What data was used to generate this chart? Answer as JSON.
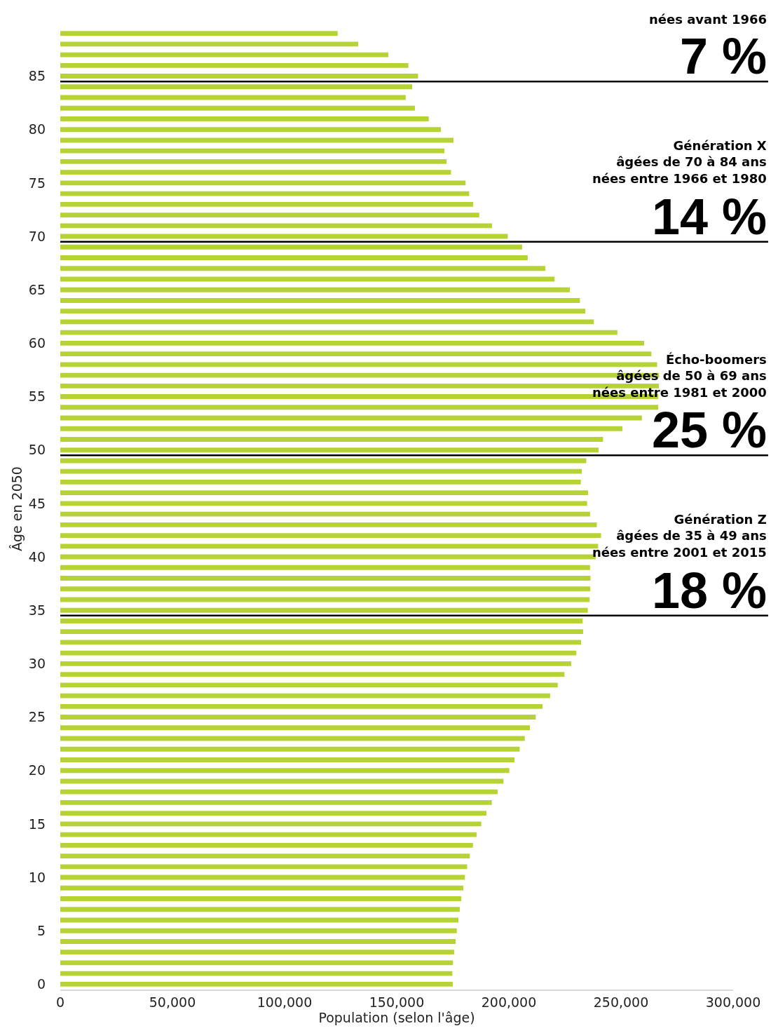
{
  "chart_data": {
    "type": "bar",
    "orientation": "horizontal",
    "x": [
      0,
      1,
      2,
      3,
      4,
      5,
      6,
      7,
      8,
      9,
      10,
      11,
      12,
      13,
      14,
      15,
      16,
      17,
      18,
      19,
      20,
      21,
      22,
      23,
      24,
      25,
      26,
      27,
      28,
      29,
      30,
      31,
      32,
      33,
      34,
      35,
      36,
      37,
      38,
      39,
      40,
      41,
      42,
      43,
      44,
      45,
      46,
      47,
      48,
      49,
      50,
      51,
      52,
      53,
      54,
      55,
      56,
      57,
      58,
      59,
      60,
      61,
      62,
      63,
      64,
      65,
      66,
      67,
      68,
      69,
      70,
      71,
      72,
      73,
      74,
      75,
      76,
      77,
      78,
      79,
      80,
      81,
      82,
      83,
      84,
      85,
      86,
      87,
      88,
      89
    ],
    "values": [
      175000,
      174800,
      175100,
      175600,
      176300,
      176800,
      177500,
      178100,
      178800,
      179700,
      180400,
      181400,
      182600,
      184000,
      185600,
      187700,
      190000,
      192400,
      195000,
      197600,
      200200,
      202500,
      204800,
      207100,
      209400,
      212000,
      215000,
      218400,
      221800,
      224800,
      227800,
      230100,
      232200,
      233100,
      232900,
      235200,
      236000,
      236300,
      236400,
      236200,
      238700,
      239800,
      241100,
      239200,
      236200,
      234900,
      235300,
      232100,
      232500,
      234500,
      240000,
      242000,
      250600,
      259300,
      266600,
      266600,
      266900,
      267000,
      266100,
      263500,
      260300,
      248400,
      237900,
      234100,
      231700,
      227200,
      220400,
      216300,
      208400,
      205900,
      199500,
      192500,
      186800,
      184100,
      182300,
      180700,
      174200,
      172200,
      171300,
      175300,
      169700,
      164300,
      158100,
      154000,
      156900,
      159500,
      155200,
      146300,
      132800,
      123700
    ],
    "color": "#b5d334",
    "xlim": [
      0,
      300000
    ],
    "xticks": [
      0,
      {
        "value": 50000,
        "label": "50,000"
      },
      {
        "value": 100000,
        "label": "100,000"
      },
      {
        "value": 150000,
        "label": "150,000"
      },
      {
        "value": 200000,
        "label": "200,000"
      },
      {
        "value": 250000,
        "label": "250,000"
      },
      {
        "value": 300000,
        "label": "300,000"
      }
    ],
    "ylim": [
      -0.5,
      89.5
    ],
    "yticks": [
      0,
      5,
      10,
      15,
      20,
      25,
      30,
      35,
      40,
      45,
      50,
      55,
      60,
      65,
      70,
      75,
      80,
      85
    ],
    "xlabel": "Population (selon l'âge)",
    "ylabel": "Âge en 2050",
    "ref_lines": [
      {
        "axis": "y",
        "value": 84.5,
        "color": "#000000"
      },
      {
        "axis": "y",
        "value": 69.5,
        "color": "#000000"
      },
      {
        "axis": "y",
        "value": 49.5,
        "color": "#000000"
      },
      {
        "axis": "y",
        "value": 34.5,
        "color": "#000000"
      }
    ],
    "annotations": [
      "nées avant 1966",
      "7 %",
      "Génération X\nâgées de 70 à 84 ans\nnées entre 1966 et 1980",
      "14 %",
      "Écho-boomers\nâgées de 50 à 69 ans\nnées entre 1981 et 2000",
      "25 %",
      "Génération Z\nâgées de 35 à 49 ans\nnées entre 2001 et 2015",
      "18 %"
    ]
  }
}
